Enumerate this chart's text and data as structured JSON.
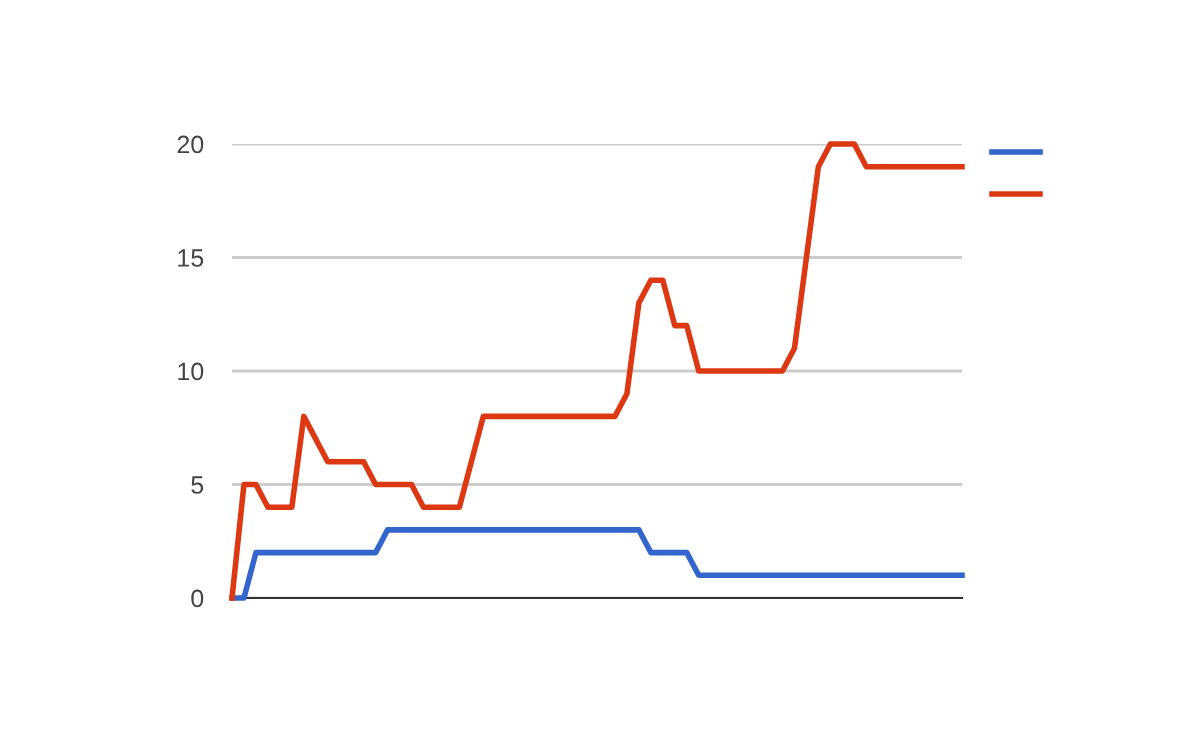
{
  "chart_data": {
    "type": "line",
    "categories": [
      null,
      null,
      null,
      null,
      null,
      null,
      null,
      null,
      null,
      null,
      null,
      null,
      null,
      null,
      null,
      null,
      null,
      null,
      null,
      null,
      null,
      null,
      null,
      null,
      null,
      null,
      null,
      null,
      null,
      null,
      null,
      null,
      null,
      null,
      null,
      null,
      null,
      null,
      null,
      null,
      null,
      null,
      null,
      null,
      null,
      null,
      null,
      null,
      null,
      null,
      null,
      null,
      null,
      null,
      null,
      null,
      null,
      null,
      null,
      null,
      null,
      null
    ],
    "series": [
      {
        "color": "#3366cc",
        "values": [
          0,
          0,
          2,
          2,
          2,
          2,
          2,
          2,
          2,
          2,
          2,
          2,
          2,
          3,
          3,
          3,
          3,
          3,
          3,
          3,
          3,
          3,
          3,
          3,
          3,
          3,
          3,
          3,
          3,
          3,
          3,
          3,
          3,
          3,
          3,
          2,
          2,
          2,
          2,
          1,
          1,
          1,
          1,
          1,
          1,
          1,
          1,
          1,
          1,
          1,
          1,
          1,
          1,
          1,
          1,
          1,
          1,
          1,
          1,
          1,
          1,
          1
        ]
      },
      {
        "color": "#dc3912",
        "values": [
          0,
          5,
          5,
          4,
          4,
          4,
          8,
          7,
          6,
          6,
          6,
          6,
          5,
          5,
          5,
          5,
          4,
          4,
          4,
          4,
          6,
          8,
          8,
          8,
          8,
          8,
          8,
          8,
          8,
          8,
          8,
          8,
          8,
          9,
          13,
          14,
          14,
          12,
          12,
          10,
          10,
          10,
          10,
          10,
          10,
          10,
          10,
          11,
          15,
          19,
          20,
          20,
          20,
          19,
          19,
          19,
          19,
          19,
          19,
          19,
          19,
          19
        ]
      }
    ],
    "ylim": [
      0,
      20
    ],
    "yticks": [
      0,
      5,
      10,
      15,
      20
    ],
    "grid": "y",
    "tick_labels": "y",
    "marker": "none",
    "line_style": "solid"
  }
}
